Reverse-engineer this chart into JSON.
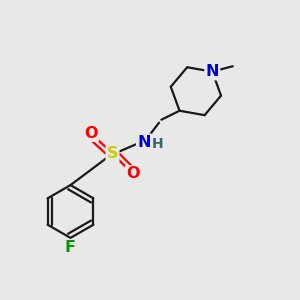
{
  "bg_color": "#e8e8e8",
  "atom_colors": {
    "C": "#000000",
    "N_blue": "#0000cc",
    "O": "#ff0000",
    "S": "#cccc00",
    "F": "#009900",
    "H": "#336666"
  },
  "bond_color": "#1a1a1a",
  "bond_width": 1.6,
  "font_size_atom": 11.5,
  "font_size_H": 10.0
}
